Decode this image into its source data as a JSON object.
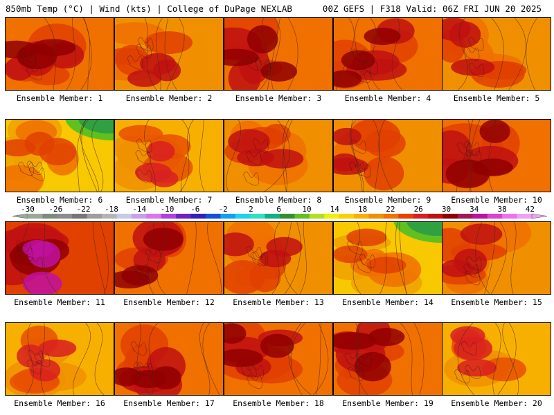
{
  "header": {
    "left": "850mb Temp (°C) | Wind (kts) | College of DuPage NEXLAB",
    "right": "00Z GEFS | F318 Valid: 06Z FRI JUN 20 2025"
  },
  "colorbar": {
    "ticks": [
      "-30",
      "-26",
      "-22",
      "-18",
      "-14",
      "-10",
      "-6",
      "-2",
      "2",
      "6",
      "10",
      "14",
      "18",
      "22",
      "26",
      "30",
      "34",
      "38",
      "42"
    ],
    "colors": [
      "#9aa89a",
      "#7f8a7f",
      "#8c8c8c",
      "#767676",
      "#9e9e9e",
      "#b4b4b4",
      "#c8c8e8",
      "#c8a0e8",
      "#e070f0",
      "#b040e0",
      "#7020c0",
      "#3020c0",
      "#1050e0",
      "#10a0f0",
      "#20d0f0",
      "#30e0c0",
      "#10b080",
      "#309030",
      "#60c020",
      "#b0e020",
      "#f0f000",
      "#f8d000",
      "#f8b000",
      "#f09000",
      "#f07000",
      "#e84000",
      "#d82020",
      "#c01010",
      "#900000",
      "#a01850",
      "#c010a0",
      "#e040d0",
      "#f070f0",
      "#f0a0f0"
    ]
  },
  "panels": [
    {
      "label": "Ensemble Member: 1",
      "theme": "hot"
    },
    {
      "label": "Ensemble Member: 2",
      "theme": "mid"
    },
    {
      "label": "Ensemble Member: 3",
      "theme": "hot"
    },
    {
      "label": "Ensemble Member: 4",
      "theme": "hot"
    },
    {
      "label": "Ensemble Member: 5",
      "theme": "mid"
    },
    {
      "label": "Ensemble Member: 6",
      "theme": "cool"
    },
    {
      "label": "Ensemble Member: 7",
      "theme": "warm"
    },
    {
      "label": "Ensemble Member: 8",
      "theme": "mid"
    },
    {
      "label": "Ensemble Member: 9",
      "theme": "mid"
    },
    {
      "label": "Ensemble Member: 10",
      "theme": "hot"
    },
    {
      "label": "Ensemble Member: 11",
      "theme": "veryhot"
    },
    {
      "label": "Ensemble Member: 12",
      "theme": "hot"
    },
    {
      "label": "Ensemble Member: 13",
      "theme": "mid"
    },
    {
      "label": "Ensemble Member: 14",
      "theme": "cool"
    },
    {
      "label": "Ensemble Member: 15",
      "theme": "mid"
    },
    {
      "label": "Ensemble Member: 16",
      "theme": "warm"
    },
    {
      "label": "Ensemble Member: 17",
      "theme": "hot"
    },
    {
      "label": "Ensemble Member: 18",
      "theme": "hot"
    },
    {
      "label": "Ensemble Member: 19",
      "theme": "hot"
    },
    {
      "label": "Ensemble Member: 20",
      "theme": "warm"
    }
  ]
}
